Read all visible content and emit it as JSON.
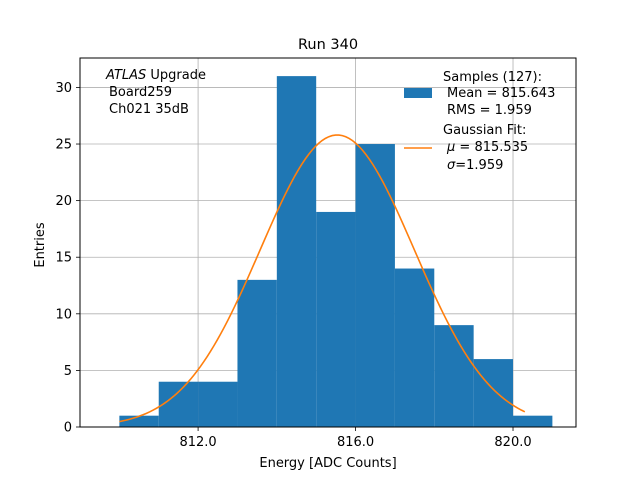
{
  "chart_data": {
    "type": "bar",
    "title": "Run 340",
    "xlabel": "Energy [ADC Counts]",
    "ylabel": "Entries",
    "xlim": [
      809.0,
      821.6
    ],
    "ylim": [
      0,
      32.6
    ],
    "xticks": [
      812.0,
      816.0,
      820.0
    ],
    "xtick_labels": [
      "812.0",
      "816.0",
      "820.0"
    ],
    "yticks": [
      0,
      5,
      10,
      15,
      20,
      25,
      30
    ],
    "ytick_labels": [
      "0",
      "5",
      "10",
      "15",
      "20",
      "25",
      "30"
    ],
    "grid": true,
    "bin_edges": [
      810,
      811,
      812,
      813,
      814,
      815,
      816,
      817,
      818,
      819,
      820,
      821
    ],
    "values": [
      1,
      4,
      4,
      13,
      31,
      19,
      25,
      14,
      9,
      6,
      1
    ],
    "bar_color": "#1f77b4",
    "fit": {
      "name": "Gaussian Fit",
      "mu": 815.535,
      "sigma": 1.959,
      "amplitude": 25.8,
      "x_range": [
        810.0,
        820.3
      ],
      "color": "#ff7f0e"
    },
    "annotation": {
      "line1_italic": "ATLAS",
      "line1_rest": " Upgrade",
      "line2": "Board259",
      "line3": "Ch021 35dB"
    },
    "legend": {
      "position": "top-right",
      "samples_line1": "Samples (127):",
      "samples_line2": "Mean = 815.643",
      "samples_line3": "RMS = 1.959",
      "fit_line1": "Gaussian Fit:",
      "fit_mu_symbol": "μ",
      "fit_mu_rest": " = 815.535",
      "fit_sigma_symbol": "σ",
      "fit_sigma_rest": "=1.959"
    }
  }
}
